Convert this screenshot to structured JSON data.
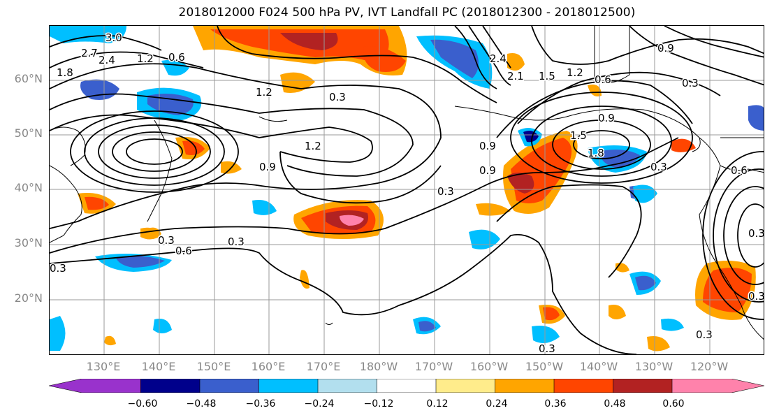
{
  "title": "2018012000 F024 500 hPa PV, IVT Landfall PC (2018012300 - 2018012500)",
  "lat_labels": [
    "60°N",
    "50°N",
    "40°N",
    "30°N",
    "20°N"
  ],
  "lon_labels": [
    "130°E",
    "140°E",
    "150°E",
    "160°E",
    "170°E",
    "180°W",
    "170°W",
    "160°W",
    "150°W",
    "140°W",
    "130°W",
    "120°W"
  ],
  "colorbar": {
    "colors": [
      "#9932cc",
      "#00008b",
      "#3a5fcd",
      "#00bfff",
      "#b2dfee",
      "#ffffff",
      "#ffec8b",
      "#ffa500",
      "#ff4500",
      "#b22222",
      "#ff82ab"
    ],
    "ticks": [
      "−0.60",
      "−0.48",
      "−0.36",
      "−0.24",
      "−0.12",
      "0.12",
      "0.24",
      "0.36",
      "0.48",
      "0.60"
    ]
  },
  "contour_labels": [
    "3.0",
    "2.7",
    "2.4",
    "1.8",
    "1.2",
    "0.6",
    "1.2",
    "0.9",
    "1.2",
    "0.3",
    "0.9",
    "0.3",
    "0.3",
    "0.6",
    "0.3",
    "0.3",
    "2.4",
    "2.1",
    "1.5",
    "1.2",
    "0.6",
    "0.9",
    "0.9",
    "1.5",
    "1.8",
    "0.3",
    "0.9",
    "0.3",
    "0.6",
    "0.3",
    "0.3",
    "0.3",
    "0.3"
  ]
}
